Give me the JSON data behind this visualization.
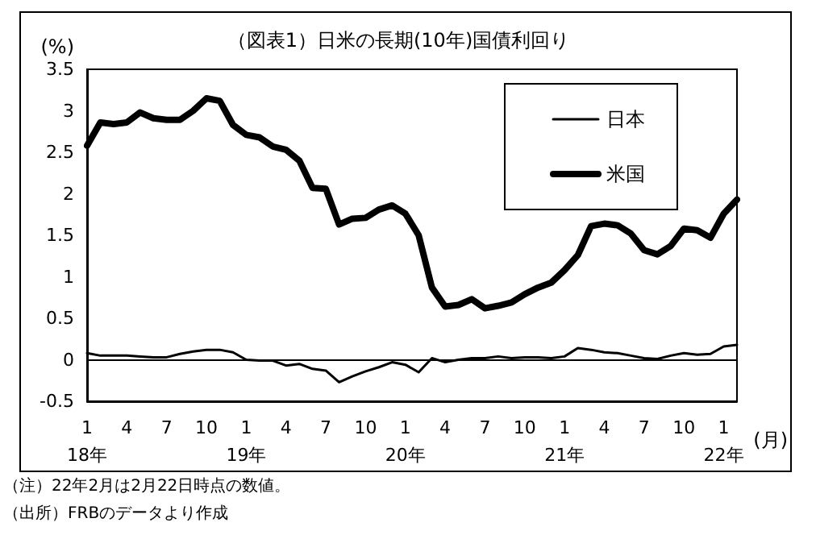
{
  "chart_data": {
    "type": "line",
    "title": "（図表1）日米の長期(10年)国債利回り",
    "ylabel": "(%)",
    "xlabel": "(月)",
    "categories": [
      "1\n18年",
      null,
      null,
      "4",
      null,
      null,
      "7",
      null,
      null,
      "10",
      null,
      null,
      "1\n19年",
      null,
      null,
      "4",
      null,
      null,
      "7",
      null,
      null,
      "10",
      null,
      null,
      "1\n20年",
      null,
      null,
      "4",
      null,
      null,
      "7",
      null,
      null,
      "10",
      null,
      null,
      "1\n21年",
      null,
      null,
      "4",
      null,
      null,
      "7",
      null,
      null,
      "10",
      null,
      null,
      "1\n22年",
      null
    ],
    "series": [
      {
        "name": "日本",
        "color": "#000000",
        "values": [
          0.08,
          0.05,
          0.05,
          0.05,
          0.04,
          0.03,
          0.03,
          0.07,
          0.1,
          0.12,
          0.12,
          0.09,
          0.0,
          -0.01,
          -0.01,
          -0.07,
          -0.05,
          -0.11,
          -0.13,
          -0.27,
          -0.2,
          -0.14,
          -0.09,
          -0.03,
          -0.06,
          -0.15,
          0.02,
          -0.03,
          0.0,
          0.02,
          0.02,
          0.04,
          0.02,
          0.03,
          0.03,
          0.02,
          0.04,
          0.14,
          0.12,
          0.09,
          0.08,
          0.05,
          0.02,
          0.01,
          0.05,
          0.08,
          0.06,
          0.07,
          0.16,
          0.18
        ]
      },
      {
        "name": "米国",
        "color": "#000000",
        "values": [
          2.58,
          2.86,
          2.84,
          2.86,
          2.98,
          2.91,
          2.89,
          2.89,
          3.0,
          3.15,
          3.12,
          2.83,
          2.71,
          2.68,
          2.57,
          2.53,
          2.4,
          2.07,
          2.06,
          1.63,
          1.7,
          1.71,
          1.81,
          1.86,
          1.76,
          1.5,
          0.87,
          0.64,
          0.66,
          0.73,
          0.62,
          0.65,
          0.69,
          0.79,
          0.87,
          0.93,
          1.08,
          1.26,
          1.61,
          1.64,
          1.62,
          1.52,
          1.32,
          1.27,
          1.37,
          1.58,
          1.56,
          1.47,
          1.76,
          1.93
        ]
      }
    ],
    "ylim": [
      -0.5,
      3.5
    ],
    "yticks": [
      -0.5,
      0,
      0.5,
      1,
      1.5,
      2,
      2.5,
      3,
      3.5
    ],
    "ref_lines": [
      {
        "axis": "y",
        "value": 0
      }
    ],
    "grid": false,
    "legend": "top right",
    "marker": "none",
    "line_style": "solid",
    "annotations": [
      "（注）22年2月は2月22日時点の数値。",
      "（出所）FRBのデータより作成"
    ]
  }
}
